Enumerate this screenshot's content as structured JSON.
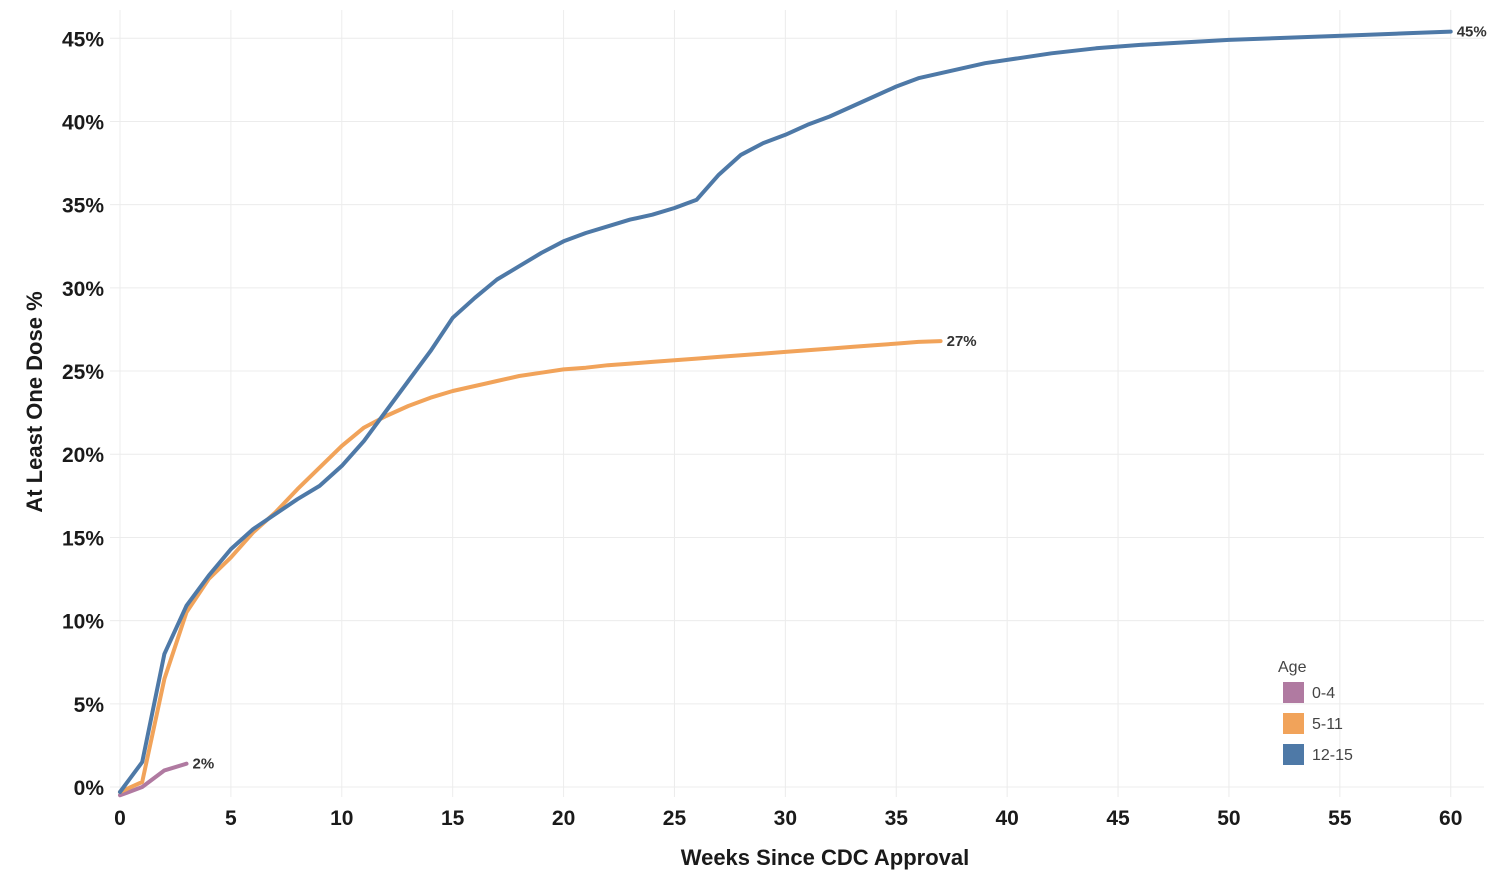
{
  "chart_data": {
    "type": "line",
    "xlabel": "Weeks Since CDC Approval",
    "ylabel": "At Least One Dose %",
    "xlim": [
      0,
      61.5
    ],
    "ylim": [
      -0.6,
      46.7
    ],
    "x_ticks": [
      0,
      5,
      10,
      15,
      20,
      25,
      30,
      35,
      40,
      45,
      50,
      55,
      60
    ],
    "y_ticks": [
      0,
      5,
      10,
      15,
      20,
      25,
      30,
      35,
      40,
      45
    ],
    "x_tick_labels": [
      "0",
      "5",
      "10",
      "15",
      "20",
      "25",
      "30",
      "35",
      "40",
      "45",
      "50",
      "55",
      "60"
    ],
    "y_tick_labels": [
      "0%",
      "5%",
      "10%",
      "15%",
      "20%",
      "25%",
      "30%",
      "35%",
      "40%",
      "45%"
    ],
    "grid": true,
    "legend": {
      "title": "Age",
      "placement": "bottom-right"
    },
    "series": [
      {
        "name": "0-4",
        "color": "#b07aa1",
        "end_label": "2%",
        "x": [
          0,
          1,
          2,
          3
        ],
        "y": [
          -0.5,
          0,
          1.0,
          1.4
        ]
      },
      {
        "name": "5-11",
        "color": "#f1a35a",
        "end_label": "27%",
        "x": [
          0,
          1,
          2,
          3,
          4,
          5,
          6,
          7,
          8,
          9,
          10,
          11,
          12,
          13,
          14,
          15,
          16,
          17,
          18,
          19,
          20,
          21,
          22,
          23,
          24,
          25,
          26,
          27,
          28,
          29,
          30,
          31,
          32,
          33,
          34,
          35,
          36,
          37
        ],
        "y": [
          -0.3,
          0.3,
          6.5,
          10.5,
          12.5,
          13.8,
          15.3,
          16.5,
          17.9,
          19.2,
          20.5,
          21.6,
          22.3,
          22.9,
          23.4,
          23.8,
          24.1,
          24.4,
          24.7,
          24.9,
          25.1,
          25.2,
          25.35,
          25.45,
          25.55,
          25.65,
          25.75,
          25.85,
          25.95,
          26.05,
          26.15,
          26.25,
          26.35,
          26.45,
          26.55,
          26.65,
          26.75,
          26.8
        ]
      },
      {
        "name": "12-15",
        "color": "#4e79a7",
        "end_label": "45%",
        "x": [
          0,
          1,
          2,
          3,
          4,
          5,
          6,
          7,
          8,
          9,
          10,
          11,
          12,
          13,
          14,
          15,
          16,
          17,
          18,
          19,
          20,
          21,
          22,
          23,
          24,
          25,
          26,
          27,
          28,
          29,
          30,
          31,
          32,
          33,
          34,
          35,
          36,
          37,
          38,
          39,
          40,
          42,
          44,
          46,
          48,
          50,
          52,
          54,
          56,
          58,
          60
        ],
        "y": [
          -0.3,
          1.5,
          8.0,
          10.9,
          12.7,
          14.3,
          15.5,
          16.4,
          17.3,
          18.1,
          19.3,
          20.8,
          22.6,
          24.4,
          26.2,
          28.2,
          29.4,
          30.5,
          31.3,
          32.1,
          32.8,
          33.3,
          33.7,
          34.1,
          34.4,
          34.8,
          35.3,
          36.8,
          38.0,
          38.7,
          39.2,
          39.8,
          40.3,
          40.9,
          41.5,
          42.1,
          42.6,
          42.9,
          43.2,
          43.5,
          43.7,
          44.1,
          44.4,
          44.6,
          44.75,
          44.9,
          45.0,
          45.1,
          45.2,
          45.3,
          45.4
        ]
      }
    ]
  }
}
